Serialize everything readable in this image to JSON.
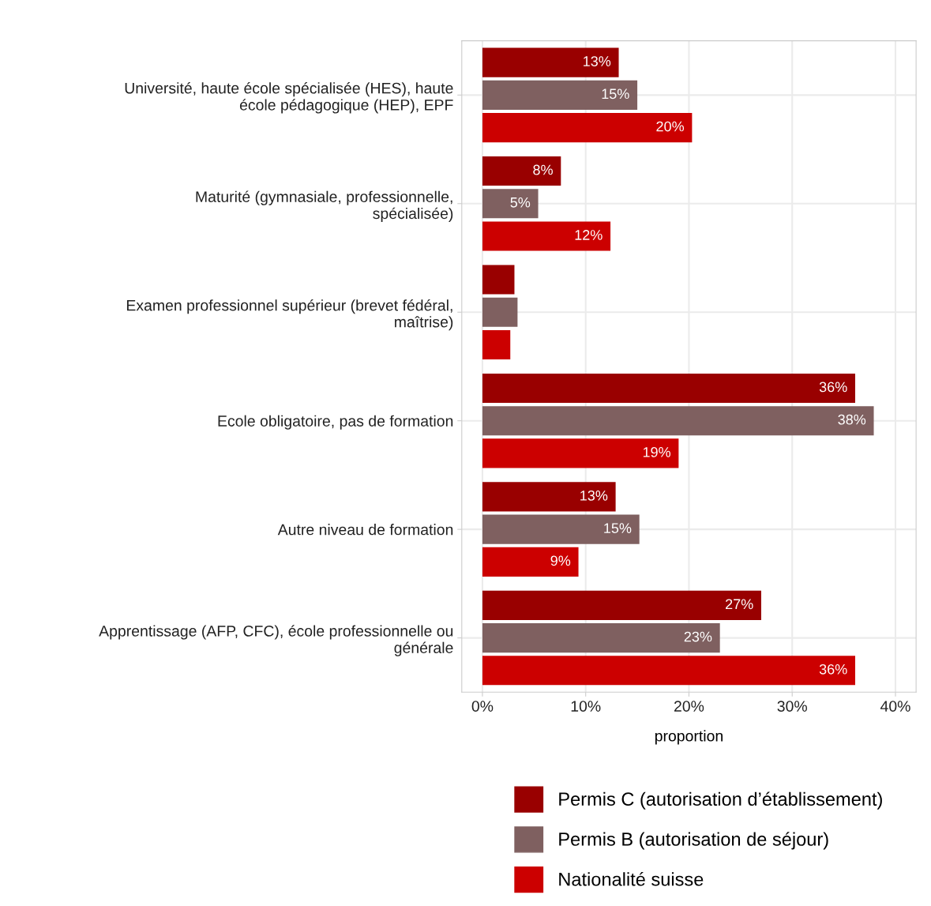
{
  "chart_data": {
    "type": "bar",
    "orientation": "horizontal",
    "xlabel": "proportion",
    "categories": [
      "Université, haute école spécialisée (HES), haute\nécole pédagogique (HEP), EPF",
      "Maturité (gymnasiale, professionnelle,\nspécialisée)",
      "Examen professionnel supérieur (brevet fédéral,\nmaîtrise)",
      "Ecole obligatoire, pas de formation",
      "Autre niveau de formation",
      "Apprentissage (AFP, CFC), école professionnelle ou\ngénérale"
    ],
    "series": [
      {
        "name": "Permis C (autorisation d’établissement)",
        "color": "#990000",
        "values": [
          13.2,
          7.6,
          3.1,
          36.1,
          12.9,
          27.0
        ],
        "value_labels": [
          "13%",
          "8%",
          null,
          "36%",
          "13%",
          "27%"
        ]
      },
      {
        "name": "Permis B (autorisation de séjour)",
        "color": "#7f6060",
        "values": [
          15.0,
          5.4,
          3.4,
          37.9,
          15.2,
          23.0
        ],
        "value_labels": [
          "15%",
          "5%",
          null,
          "38%",
          "15%",
          "23%"
        ]
      },
      {
        "name": "Nationalité suisse",
        "color": "#cc0000",
        "values": [
          20.3,
          12.4,
          2.7,
          19.0,
          9.3,
          36.1
        ],
        "value_labels": [
          "20%",
          "12%",
          null,
          "19%",
          "9%",
          "36%"
        ]
      }
    ],
    "xlim": [
      -2,
      42
    ],
    "xticks": [
      {
        "value": 0,
        "label": "0%"
      },
      {
        "value": 10,
        "label": "10%"
      },
      {
        "value": 20,
        "label": "20%"
      },
      {
        "value": 30,
        "label": "30%"
      },
      {
        "value": 40,
        "label": "40%"
      }
    ],
    "grid": true,
    "legend": "bottom"
  }
}
